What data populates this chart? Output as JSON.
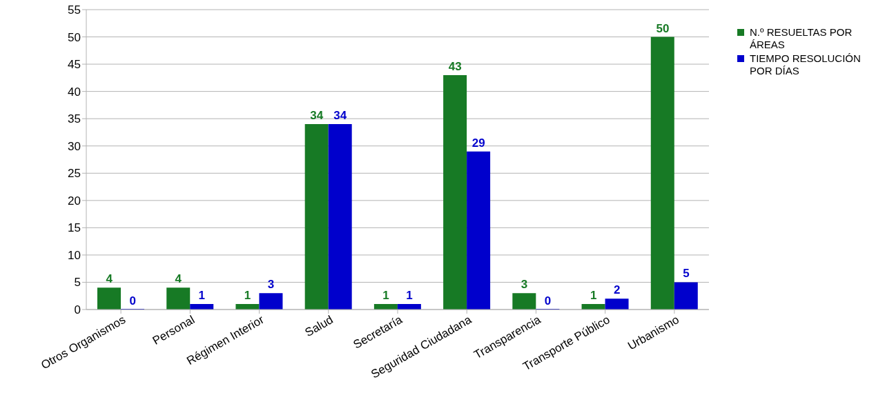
{
  "chart_data": {
    "type": "bar",
    "categories": [
      "Otros Organismos",
      "Personal",
      "Régimen Interior",
      "Salud",
      "Secretaría",
      "Seguridad Ciudadana",
      "Transparencia",
      "Transporte Público",
      "Urbanismo"
    ],
    "series": [
      {
        "name": "N.º RESUELTAS POR ÁREAS",
        "color": "#177a25",
        "values": [
          4,
          4,
          1,
          34,
          1,
          43,
          3,
          1,
          50
        ]
      },
      {
        "name": "TIEMPO RESOLUCIÓN POR DÍAS",
        "color": "#0000cc",
        "values": [
          0,
          1,
          3,
          34,
          1,
          29,
          0,
          2,
          5
        ]
      }
    ],
    "ylim": [
      0,
      55
    ],
    "yticks": [
      0,
      5,
      10,
      15,
      20,
      25,
      30,
      35,
      40,
      45,
      50,
      55
    ],
    "grid": "y",
    "legend": "top right",
    "data_labels": true
  }
}
